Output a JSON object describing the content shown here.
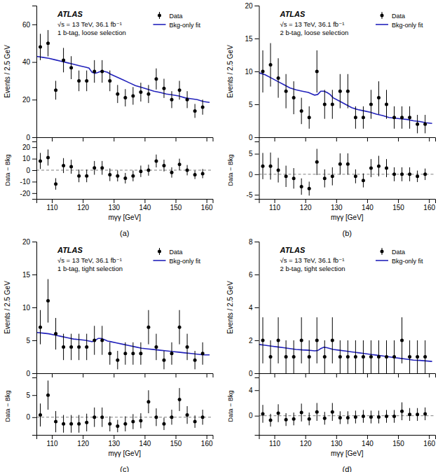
{
  "chart_data": [
    {
      "type": "scatter",
      "title": "(a)",
      "annotations": [
        "ATLAS",
        "√s = 13 TeV, 36.1 fb⁻¹",
        "1 b-tag, loose selection"
      ],
      "xlabel": "mγγ [GeV]",
      "ylabel": "Events / 2.5 GeV",
      "xlim": [
        105,
        162
      ],
      "xticks": [
        110,
        120,
        130,
        140,
        150,
        160
      ],
      "ylim": [
        0,
        70
      ],
      "yticks": [
        0,
        20,
        40,
        60
      ],
      "legend": "upper right",
      "series": [
        {
          "name": "Data",
          "type": "scatter",
          "color": "black",
          "x": [
            106.25,
            108.75,
            111.25,
            113.75,
            116.25,
            118.75,
            121.25,
            123.75,
            126.25,
            128.75,
            131.25,
            133.75,
            136.25,
            138.75,
            141.25,
            143.75,
            146.25,
            148.75,
            151.25,
            153.75,
            156.25,
            158.75
          ],
          "values": [
            48,
            50,
            25,
            41,
            37,
            30,
            30,
            35,
            35,
            30,
            23,
            21,
            22,
            24,
            23,
            31,
            26,
            20,
            25,
            20,
            14,
            16
          ],
          "errors": [
            7,
            7,
            5,
            6.5,
            6.1,
            5.5,
            5.5,
            6,
            6,
            5.5,
            4.8,
            4.6,
            4.7,
            5,
            4.8,
            5.6,
            5.1,
            4.5,
            5,
            4.5,
            3.7,
            4
          ]
        },
        {
          "name": "Bkg-only fit",
          "type": "line",
          "color": "#2222bb",
          "x": [
            105,
            107,
            109,
            111,
            113,
            115,
            117,
            119,
            121,
            122,
            123,
            124,
            125,
            126,
            127,
            128,
            129,
            131,
            133,
            135,
            137,
            139,
            141,
            143,
            145,
            147,
            149,
            151,
            153,
            155,
            157,
            159,
            161
          ],
          "values": [
            43,
            42.5,
            42,
            41.2,
            40.4,
            39.6,
            38.8,
            38.0,
            37.2,
            36.8,
            34.5,
            34.0,
            34.5,
            35.2,
            35.0,
            34.5,
            33.5,
            32.0,
            30.5,
            29.0,
            27.5,
            26.5,
            25.5,
            24.5,
            23.8,
            23.0,
            22.5,
            22.0,
            21.0,
            20.5,
            20.0,
            19.0,
            18.5
          ]
        }
      ],
      "residual": {
        "ylabel": "Data − Bkg",
        "ylim": [
          -25,
          25
        ],
        "yticks": [
          -20,
          -10,
          0,
          10,
          20
        ],
        "color": "black",
        "values": [
          8,
          11,
          -12,
          4,
          3,
          -5,
          -5,
          2,
          2,
          -4,
          -5,
          -7,
          -5,
          -1,
          0,
          8,
          4,
          -2,
          5,
          0,
          -4,
          -3
        ],
        "errors": [
          7,
          7,
          5,
          6.5,
          6.1,
          5.5,
          5.5,
          6,
          6,
          5.5,
          4.8,
          4.6,
          4.7,
          5,
          4.8,
          5.6,
          5.1,
          4.5,
          5,
          4.5,
          3.7,
          4
        ],
        "reference_line": 0,
        "line_style": "dashed"
      }
    },
    {
      "type": "scatter",
      "title": "(b)",
      "annotations": [
        "ATLAS",
        "√s = 13 TeV, 36.1 fb⁻¹",
        "2 b-tag, loose selection"
      ],
      "xlabel": "mγγ [GeV]",
      "ylabel": "Events / 2.5 GeV",
      "xlim": [
        105,
        162
      ],
      "xticks": [
        110,
        120,
        130,
        140,
        150,
        160
      ],
      "ylim": [
        0,
        20
      ],
      "yticks": [
        0,
        5,
        10,
        15,
        20
      ],
      "legend": "upper right",
      "series": [
        {
          "name": "Data",
          "type": "scatter",
          "color": "black",
          "x": [
            106.25,
            108.75,
            111.25,
            113.75,
            116.25,
            118.75,
            121.25,
            123.75,
            126.25,
            128.75,
            131.25,
            133.75,
            136.25,
            138.75,
            141.25,
            143.75,
            146.25,
            148.75,
            151.25,
            153.75,
            156.25,
            158.75
          ],
          "values": [
            10,
            11,
            9,
            7,
            6,
            4,
            3,
            10,
            5,
            5,
            7,
            7,
            3,
            3,
            5,
            6,
            5,
            3,
            3,
            3,
            2,
            2
          ],
          "errors": [
            3.2,
            3.3,
            3,
            2.6,
            2.5,
            2,
            1.7,
            3.2,
            2.2,
            2.2,
            2.6,
            2.6,
            1.7,
            1.7,
            2.2,
            2.5,
            2.2,
            1.7,
            1.7,
            1.7,
            1.4,
            1.4
          ]
        },
        {
          "name": "Bkg-only fit",
          "type": "line",
          "color": "#2222bb",
          "x": [
            105,
            107,
            109,
            111,
            113,
            115,
            117,
            119,
            121,
            122,
            123,
            124,
            125,
            126,
            127,
            128,
            129,
            131,
            133,
            135,
            137,
            139,
            141,
            143,
            145,
            147,
            149,
            151,
            153,
            155,
            157,
            159,
            161
          ],
          "values": [
            9.8,
            9.5,
            9.0,
            8.5,
            8.0,
            7.5,
            7.2,
            7.0,
            6.8,
            6.6,
            6.4,
            6.5,
            7.0,
            7.0,
            6.8,
            6.5,
            6.0,
            5.5,
            5.0,
            4.5,
            4.2,
            4.0,
            3.8,
            3.5,
            3.3,
            3.0,
            2.9,
            2.8,
            2.7,
            2.5,
            2.4,
            2.2,
            2.1
          ]
        }
      ],
      "residual": {
        "ylabel": "Data − Bkg",
        "ylim": [
          -6,
          8
        ],
        "yticks": [
          -5,
          0,
          5
        ],
        "color": "black",
        "values": [
          2,
          2,
          1,
          -0.5,
          -1,
          -3,
          -3.5,
          3,
          -1,
          -0.5,
          2.5,
          2.5,
          -0.5,
          -1.5,
          1.5,
          2,
          1.5,
          0,
          0,
          0,
          -0.5,
          0
        ],
        "errors": [
          3.2,
          3.3,
          3,
          2.6,
          2.5,
          2,
          1.7,
          3.2,
          2.2,
          2.2,
          2.6,
          2.6,
          1.7,
          1.7,
          2.2,
          2.5,
          2.2,
          1.7,
          1.7,
          1.7,
          1.4,
          1.4
        ],
        "reference_line": 0,
        "line_style": "dashed"
      }
    },
    {
      "type": "scatter",
      "title": "(c)",
      "annotations": [
        "ATLAS",
        "√s = 13 TeV, 36.1 fb⁻¹",
        "1 b-tag, tight selection"
      ],
      "xlabel": "mγγ [GeV]",
      "ylabel": "Events / 2.5 GeV",
      "xlim": [
        105,
        162
      ],
      "xticks": [
        110,
        120,
        130,
        140,
        150,
        160
      ],
      "ylim": [
        0,
        20
      ],
      "yticks": [
        0,
        5,
        10,
        15,
        20
      ],
      "legend": "upper right",
      "series": [
        {
          "name": "Data",
          "type": "scatter",
          "color": "black",
          "x": [
            106.25,
            108.75,
            111.25,
            113.75,
            116.25,
            118.75,
            121.25,
            123.75,
            126.25,
            128.75,
            131.25,
            133.75,
            136.25,
            138.75,
            141.25,
            143.75,
            146.25,
            148.75,
            151.25,
            153.75,
            156.25,
            158.75
          ],
          "values": [
            7,
            11,
            6,
            4,
            4,
            4,
            4,
            5,
            5,
            3,
            2,
            3,
            3,
            3,
            7,
            4,
            2,
            3,
            7,
            4,
            2,
            3
          ],
          "errors": [
            2.6,
            3.3,
            2.4,
            2,
            2,
            2,
            2,
            2.2,
            2.2,
            1.7,
            1.4,
            1.7,
            1.7,
            1.7,
            2.6,
            2,
            1.4,
            1.7,
            2.6,
            2,
            1.4,
            1.7
          ]
        },
        {
          "name": "Bkg-only fit",
          "type": "line",
          "color": "#2222bb",
          "x": [
            105,
            107,
            109,
            111,
            113,
            115,
            117,
            119,
            121,
            122,
            123,
            124,
            125,
            126,
            127,
            128,
            129,
            131,
            133,
            135,
            137,
            139,
            141,
            143,
            145,
            147,
            149,
            151,
            153,
            155,
            157,
            159,
            161
          ],
          "values": [
            6.2,
            6.1,
            6.0,
            5.8,
            5.6,
            5.4,
            5.2,
            5.1,
            5.0,
            4.9,
            4.8,
            5.0,
            5.3,
            5.3,
            5.1,
            4.9,
            4.8,
            4.6,
            4.4,
            4.2,
            4.0,
            3.8,
            3.7,
            3.6,
            3.5,
            3.4,
            3.3,
            3.2,
            3.1,
            3.0,
            2.9,
            2.8,
            2.8
          ]
        }
      ],
      "residual": {
        "ylabel": "Data − Bkg",
        "ylim": [
          -4,
          9
        ],
        "yticks": [
          0,
          5
        ],
        "color": "black",
        "values": [
          0.5,
          5,
          -1,
          -1.5,
          -1.5,
          -1.5,
          -1.2,
          0,
          0,
          -1.5,
          -2,
          -1.5,
          -1,
          -0.8,
          3.5,
          0,
          -1.5,
          0,
          4,
          0.5,
          -1,
          0
        ],
        "errors": [
          2.6,
          3.3,
          2.4,
          2,
          2,
          2,
          2,
          2.2,
          2.2,
          1.7,
          1.4,
          1.7,
          1.7,
          1.7,
          2.6,
          2,
          1.4,
          1.7,
          2.6,
          2,
          1.4,
          1.7
        ],
        "reference_line": 0,
        "line_style": "dashed"
      }
    },
    {
      "type": "scatter",
      "title": "(d)",
      "annotations": [
        "ATLAS",
        "√s = 13 TeV, 36.1 fb⁻¹",
        "2 b-tag, tight selection"
      ],
      "xlabel": "mγγ [GeV]",
      "ylabel": "Events / 2.5 GeV",
      "xlim": [
        105,
        162
      ],
      "xticks": [
        110,
        120,
        130,
        140,
        150,
        160
      ],
      "ylim": [
        0,
        8
      ],
      "yticks": [
        0,
        2,
        4,
        6,
        8
      ],
      "legend": "upper right",
      "series": [
        {
          "name": "Data",
          "type": "scatter",
          "color": "black",
          "x": [
            106.25,
            108.75,
            111.25,
            113.75,
            116.25,
            118.75,
            121.25,
            123.75,
            126.25,
            128.75,
            131.25,
            133.75,
            136.25,
            138.75,
            141.25,
            143.75,
            146.25,
            148.75,
            151.25,
            153.75,
            156.25,
            158.75
          ],
          "values": [
            2,
            1,
            2,
            1,
            1,
            2,
            1,
            2,
            1,
            2,
            1,
            1,
            1,
            1,
            1,
            1,
            1,
            1,
            2,
            1,
            1,
            1
          ],
          "errors": [
            1.4,
            1.0,
            1.4,
            1.0,
            1.0,
            1.4,
            1.0,
            1.4,
            1.0,
            1.4,
            1.0,
            1.0,
            1.0,
            1.0,
            1.0,
            1.0,
            1.0,
            1.0,
            1.4,
            1.0,
            1.0,
            1.0
          ]
        },
        {
          "name": "Bkg-only fit",
          "type": "line",
          "color": "#2222bb",
          "x": [
            105,
            107,
            109,
            111,
            113,
            115,
            117,
            119,
            121,
            122,
            123,
            124,
            125,
            126,
            127,
            128,
            129,
            131,
            133,
            135,
            137,
            139,
            141,
            143,
            145,
            147,
            149,
            151,
            153,
            155,
            157,
            159,
            161
          ],
          "values": [
            1.75,
            1.7,
            1.65,
            1.6,
            1.55,
            1.5,
            1.45,
            1.42,
            1.4,
            1.38,
            1.36,
            1.38,
            1.5,
            1.58,
            1.55,
            1.5,
            1.45,
            1.4,
            1.35,
            1.3,
            1.25,
            1.2,
            1.15,
            1.1,
            1.05,
            1.0,
            0.95,
            0.9,
            0.85,
            0.8,
            0.78,
            0.75,
            0.72
          ]
        }
      ],
      "residual": {
        "ylabel": "Data − Bkg",
        "ylim": [
          -3,
          6
        ],
        "yticks": [
          0,
          4
        ],
        "color": "black",
        "values": [
          0.3,
          -0.7,
          0.4,
          -0.6,
          -0.5,
          0.5,
          -0.5,
          0.6,
          -0.4,
          0.6,
          -0.3,
          -0.3,
          -0.2,
          -0.1,
          -0.2,
          -0.2,
          -0.1,
          -0.1,
          0.7,
          0.2,
          0.2,
          0.3
        ],
        "errors": [
          1.4,
          1.0,
          1.4,
          1.0,
          1.0,
          1.4,
          1.0,
          1.4,
          1.0,
          1.4,
          1.0,
          1.0,
          1.0,
          1.0,
          1.0,
          1.0,
          1.0,
          1.0,
          1.4,
          1.0,
          1.0,
          1.0
        ],
        "reference_line": 0,
        "line_style": "dashed"
      }
    }
  ]
}
